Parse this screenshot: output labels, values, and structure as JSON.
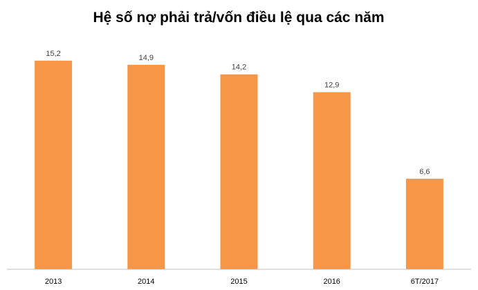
{
  "chart_data": {
    "type": "bar",
    "title": "Hệ số nợ phải trả/vốn điều lệ qua các năm",
    "xlabel": "",
    "ylabel": "",
    "categories": [
      "2013",
      "2014",
      "2015",
      "2016",
      "6T/2017"
    ],
    "values": [
      15.2,
      14.9,
      14.2,
      12.9,
      6.6
    ],
    "value_labels": [
      "15,2",
      "14,9",
      "14,2",
      "12,9",
      "6,6"
    ],
    "ylim": [
      0,
      16.8
    ],
    "grid": false,
    "legend": "none",
    "bar_color": "#F79646"
  }
}
